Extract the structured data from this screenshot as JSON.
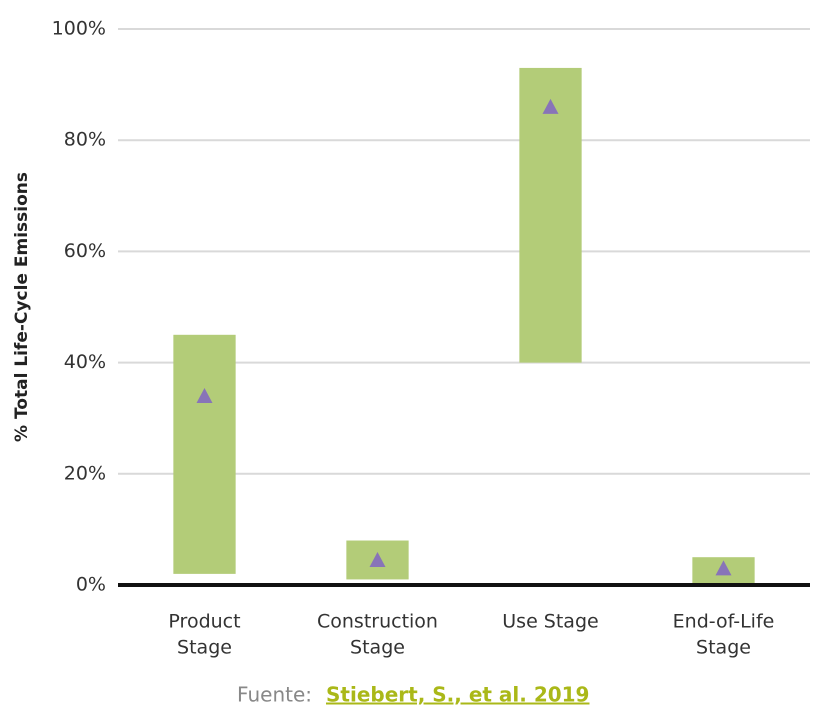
{
  "chart_data": {
    "type": "floating_bar",
    "ylabel": "% Total Life-Cycle Emissions",
    "categories": [
      [
        "Product",
        "Stage"
      ],
      [
        "Construction",
        "Stage"
      ],
      [
        "Use Stage"
      ],
      [
        "End-of-Life",
        "Stage"
      ]
    ],
    "low": [
      2,
      1,
      40,
      0
    ],
    "high": [
      45,
      8,
      93,
      5
    ],
    "bar_color": "#b3cc78",
    "markers": [
      34,
      4.5,
      86,
      3
    ],
    "marker_color": "#8874b8",
    "ylim": [
      0,
      100
    ],
    "yticks": [
      {
        "value": 0,
        "label": "0%"
      },
      {
        "value": 20,
        "label": "20%"
      },
      {
        "value": 40,
        "label": "40%"
      },
      {
        "value": 60,
        "label": "60%"
      },
      {
        "value": 80,
        "label": "80%"
      },
      {
        "value": 100,
        "label": "100%"
      }
    ],
    "grid": true,
    "source_label": "Fuente:",
    "source": "Stiebert, S., et al. 2019"
  }
}
